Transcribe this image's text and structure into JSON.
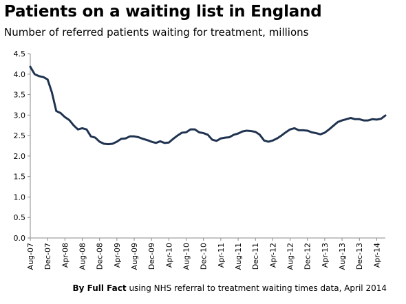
{
  "chart_data": {
    "type": "line",
    "title": "Patients on a waiting list in England",
    "subtitle": "Number of referred patients waiting for treatment, millions",
    "xlabel": "",
    "ylabel": "",
    "ylim": [
      0,
      4.5
    ],
    "yticks": [
      "0.0",
      "0.5",
      "1.0",
      "1.5",
      "2.0",
      "2.5",
      "3.0",
      "3.5",
      "4.0",
      "4.5"
    ],
    "grid": false,
    "legend": "none",
    "color": "#1f3350",
    "x_tick_labels": [
      "Aug-07",
      "Dec-07",
      "Apr-08",
      "Aug-08",
      "Dec-08",
      "Apr-09",
      "Aug-09",
      "Dec-09",
      "Apr-10",
      "Aug-10",
      "Dec-10",
      "Apr-11",
      "Aug-11",
      "Dec-11",
      "Apr-12",
      "Aug-12",
      "Dec-12",
      "Apr-13",
      "Aug-13",
      "Dec-13",
      "Apr-14"
    ],
    "start_month": "Aug-07",
    "end_month": "Apr-14",
    "values": [
      4.18,
      4.0,
      3.95,
      3.93,
      3.87,
      3.55,
      3.1,
      3.05,
      2.95,
      2.88,
      2.75,
      2.65,
      2.68,
      2.65,
      2.48,
      2.45,
      2.35,
      2.3,
      2.29,
      2.3,
      2.35,
      2.42,
      2.43,
      2.48,
      2.48,
      2.46,
      2.42,
      2.39,
      2.35,
      2.32,
      2.36,
      2.32,
      2.33,
      2.42,
      2.5,
      2.57,
      2.58,
      2.65,
      2.65,
      2.58,
      2.56,
      2.52,
      2.4,
      2.37,
      2.43,
      2.45,
      2.46,
      2.52,
      2.55,
      2.6,
      2.62,
      2.61,
      2.59,
      2.52,
      2.38,
      2.35,
      2.38,
      2.43,
      2.5,
      2.58,
      2.65,
      2.68,
      2.63,
      2.63,
      2.62,
      2.58,
      2.56,
      2.53,
      2.57,
      2.65,
      2.74,
      2.83,
      2.87,
      2.9,
      2.93,
      2.9,
      2.9,
      2.87,
      2.87,
      2.9,
      2.89,
      2.91,
      2.99
    ]
  },
  "source": {
    "by": "By Full Fact",
    "rest": " using NHS referral to treatment waiting times data, April 2014"
  }
}
